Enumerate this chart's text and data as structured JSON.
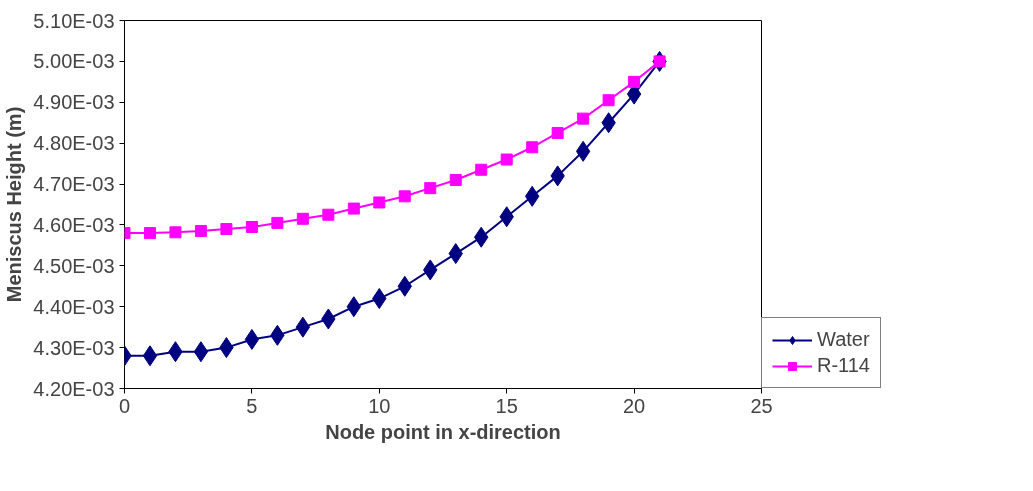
{
  "chart_data": {
    "type": "line",
    "xlabel": "Node point in x-direction",
    "ylabel": "Meniscus Height (m)",
    "x": [
      0,
      1,
      2,
      3,
      4,
      5,
      6,
      7,
      8,
      9,
      10,
      11,
      12,
      13,
      14,
      15,
      16,
      17,
      18,
      19,
      20,
      21
    ],
    "xlim": [
      0,
      25
    ],
    "xticks": [
      0,
      5,
      10,
      15,
      20,
      25
    ],
    "ylim": [
      0.0042,
      0.0051
    ],
    "yticks": [
      {
        "value": 0.0042,
        "label": "4.20E-03"
      },
      {
        "value": 0.0043,
        "label": "4.30E-03"
      },
      {
        "value": 0.0044,
        "label": "4.40E-03"
      },
      {
        "value": 0.0045,
        "label": "4.50E-03"
      },
      {
        "value": 0.0046,
        "label": "4.60E-03"
      },
      {
        "value": 0.0047,
        "label": "4.70E-03"
      },
      {
        "value": 0.0048,
        "label": "4.80E-03"
      },
      {
        "value": 0.0049,
        "label": "4.90E-03"
      },
      {
        "value": 0.005,
        "label": "5.00E-03"
      },
      {
        "value": 0.0051,
        "label": "5.10E-03"
      }
    ],
    "grid": false,
    "legend": "right",
    "line_style": "solid",
    "series": [
      {
        "name": "Water",
        "color": "#000080",
        "marker": "diamond",
        "values": [
          0.00428,
          0.00428,
          0.00429,
          0.00429,
          0.0043,
          0.00432,
          0.00433,
          0.00435,
          0.00437,
          0.0044,
          0.00442,
          0.00445,
          0.00449,
          0.00453,
          0.00457,
          0.00462,
          0.00467,
          0.00472,
          0.00478,
          0.00485,
          0.00492,
          0.005
        ]
      },
      {
        "name": "R-114",
        "color": "#ff00ff",
        "marker": "square",
        "values": [
          0.00458,
          0.00458,
          0.004582,
          0.004585,
          0.00459,
          0.004595,
          0.004605,
          0.004615,
          0.004625,
          0.00464,
          0.004655,
          0.00467,
          0.00469,
          0.00471,
          0.004735,
          0.00476,
          0.00479,
          0.004825,
          0.00486,
          0.004905,
          0.00495,
          0.005
        ]
      }
    ]
  }
}
